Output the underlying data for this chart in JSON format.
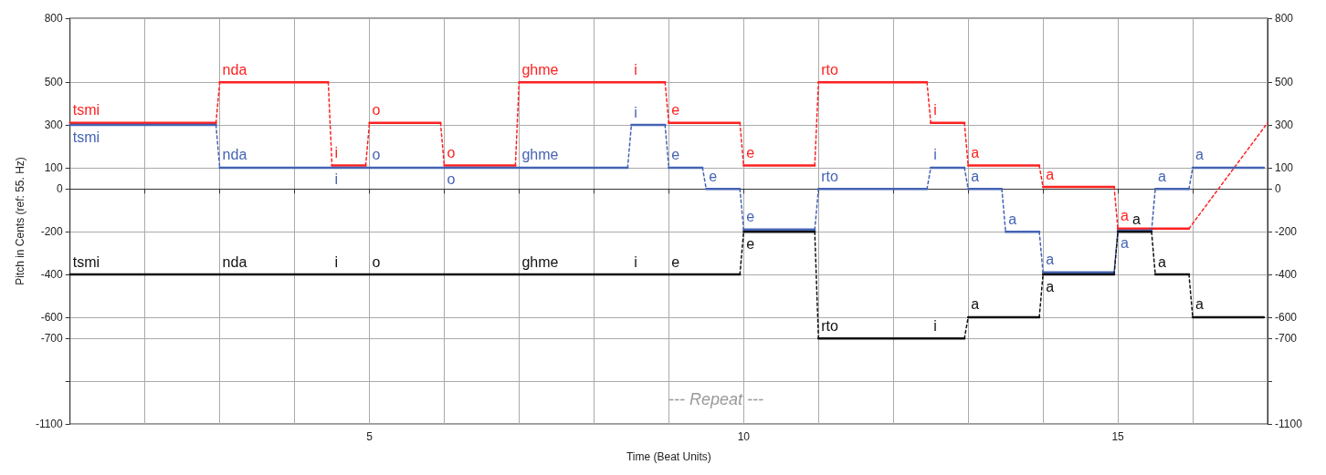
{
  "chart_data": {
    "type": "line",
    "xlabel": "Time (Beat Units)",
    "ylabel": "Pitch in Cents (ref: 55. Hz)",
    "annotations": [
      "--- Repeat ---"
    ],
    "xlim": [
      1,
      17
    ],
    "xticks": [
      {
        "value": 2,
        "label": null
      },
      {
        "value": 3,
        "label": null
      },
      {
        "value": 4,
        "label": null
      },
      5,
      {
        "value": 6,
        "label": null
      },
      {
        "value": 7,
        "label": null
      },
      {
        "value": 8,
        "label": null
      },
      {
        "value": 9,
        "label": null
      },
      10,
      {
        "value": 11,
        "label": null
      },
      {
        "value": 12,
        "label": null
      },
      {
        "value": 13,
        "label": null
      },
      {
        "value": 14,
        "label": null
      },
      15,
      {
        "value": 16,
        "label": null
      }
    ],
    "ylim": [
      -1100,
      800
    ],
    "yticks": [
      -1100,
      {
        "value": -900,
        "label": null
      },
      -700,
      -600,
      -400,
      -200,
      0,
      100,
      300,
      500,
      800
    ],
    "y2lim": [
      -1100,
      800
    ],
    "y2ticks": [
      -1100,
      {
        "value": -900,
        "label": null
      },
      -700,
      -600,
      -400,
      -200,
      0,
      100,
      300,
      500,
      800
    ],
    "grid": true,
    "series": [
      {
        "color": "#ff2121",
        "x": [
          1,
          2.95,
          3,
          4.45,
          4.5,
          4.95,
          5,
          5.95,
          6,
          6.95,
          7,
          8.5,
          8.5,
          8.95,
          9,
          9.95,
          10,
          10.95,
          11,
          12.45,
          12.5,
          12.95,
          13,
          13.95,
          14,
          14.95,
          15,
          15.95,
          17
        ],
        "values": [
          310,
          310,
          500,
          500,
          110,
          110,
          310,
          310,
          110,
          110,
          500,
          500,
          500,
          500,
          310,
          310,
          110,
          110,
          500,
          500,
          310,
          310,
          110,
          110,
          10,
          10,
          -185,
          -185,
          310
        ],
        "value_labels": [
          "tsmi",
          null,
          "nda",
          null,
          "i",
          null,
          "o",
          null,
          "o",
          null,
          "ghme",
          null,
          "i",
          null,
          "e",
          null,
          "e",
          null,
          "rto",
          null,
          "i",
          null,
          "a",
          null,
          "a",
          null,
          "a",
          null,
          null
        ]
      },
      {
        "color": "#4463b4",
        "x": [
          1,
          2.95,
          3,
          4.45,
          4.5,
          4.95,
          5,
          5.95,
          6,
          6.95,
          7,
          8.45,
          8.5,
          8.95,
          9,
          9.45,
          9.5,
          9.95,
          10,
          10.95,
          11,
          12.45,
          12.5,
          12.95,
          13,
          13.45,
          13.5,
          13.95,
          14,
          14.95,
          15,
          15.45,
          15.5,
          15.95,
          16,
          16.95
        ],
        "values": [
          300,
          300,
          100,
          100,
          100,
          100,
          100,
          100,
          100,
          100,
          100,
          100,
          300,
          300,
          100,
          100,
          0,
          0,
          -190,
          -190,
          0,
          0,
          100,
          100,
          0,
          0,
          -200,
          -200,
          -390,
          -390,
          -195,
          -195,
          0,
          0,
          100,
          100
        ],
        "value_labels": [
          "tsmi",
          null,
          "nda",
          null,
          "i",
          null,
          "o",
          null,
          "o",
          null,
          "ghme",
          null,
          "i",
          null,
          "e",
          null,
          "e",
          null,
          "e",
          null,
          "rto",
          null,
          "i",
          null,
          "a",
          null,
          "a",
          null,
          "a",
          null,
          "a",
          null,
          "a",
          null,
          "a",
          null
        ]
      },
      {
        "color": "#111111",
        "x": [
          1,
          2.95,
          3,
          4.45,
          4.5,
          4.95,
          5,
          6.95,
          7,
          8.45,
          8.5,
          8.95,
          9,
          9.95,
          10,
          10.95,
          11,
          12.45,
          12.5,
          12.95,
          13,
          13.95,
          14,
          14.95,
          15,
          15.45,
          15.5,
          15.95,
          16,
          16.95
        ],
        "values": [
          -400,
          -400,
          -400,
          -400,
          -400,
          -400,
          -400,
          -400,
          -400,
          -400,
          -400,
          -400,
          -400,
          -400,
          -200,
          -200,
          -700,
          -700,
          -700,
          -700,
          -600,
          -600,
          -400,
          -400,
          -200,
          -200,
          -400,
          -400,
          -600,
          -600
        ],
        "value_labels": [
          "tsmi",
          null,
          "nda",
          null,
          "i",
          null,
          "o",
          null,
          "ghme",
          null,
          "i",
          null,
          "e",
          null,
          "e",
          null,
          "rto",
          null,
          "i",
          null,
          "a",
          null,
          "a",
          null,
          "a",
          null,
          "a",
          null,
          "a",
          null
        ]
      }
    ]
  }
}
